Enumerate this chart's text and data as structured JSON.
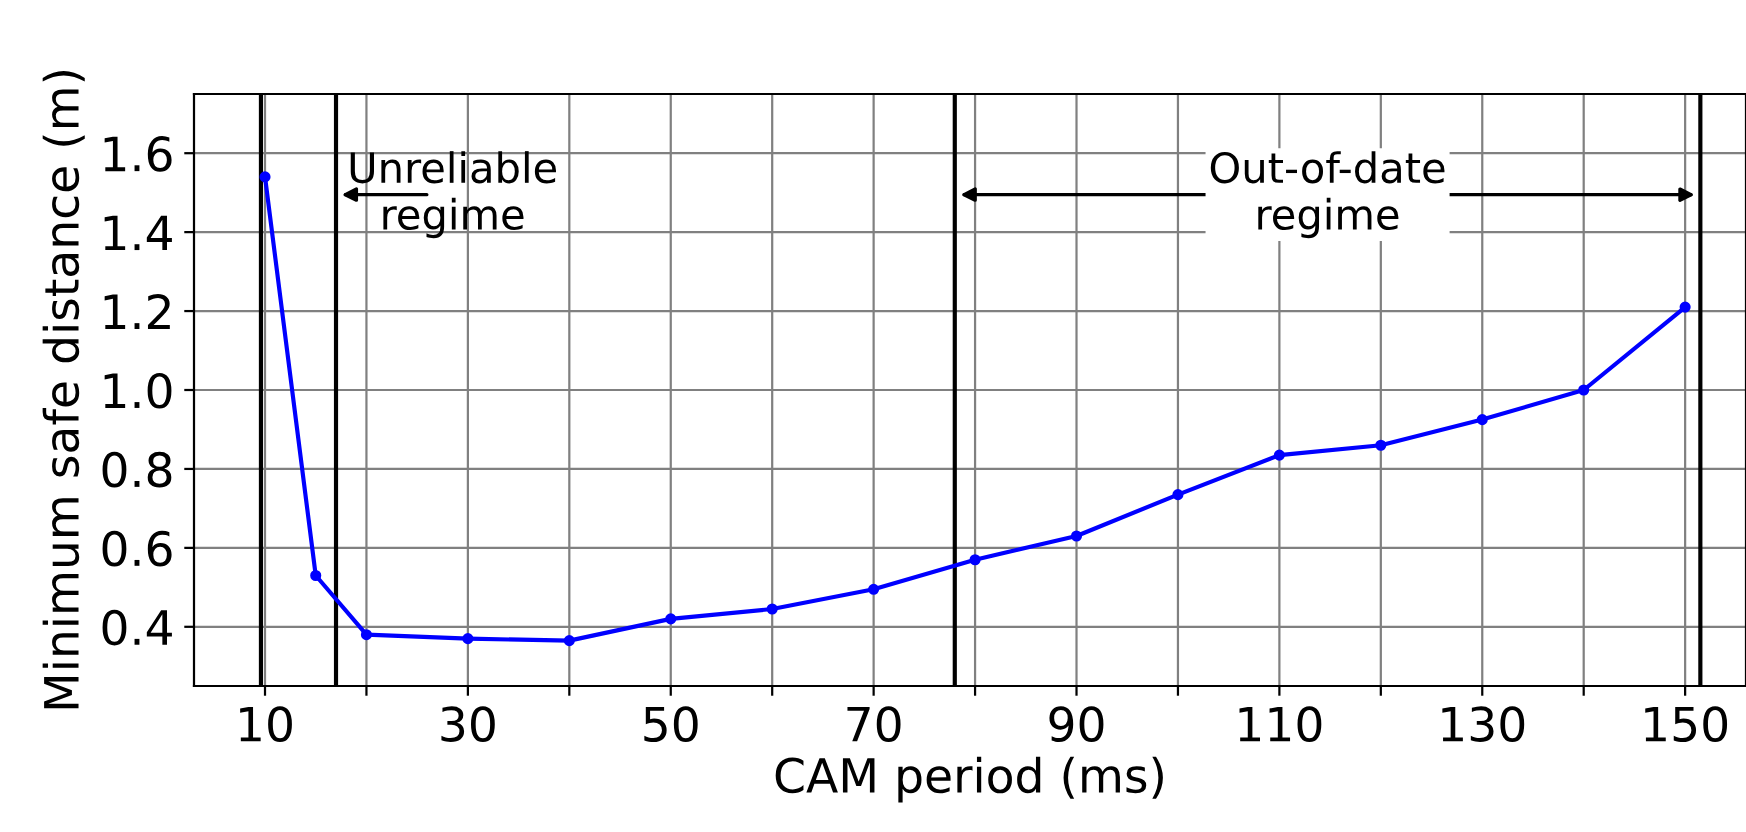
{
  "chart_data": {
    "type": "line",
    "xlabel": "CAM period (ms)",
    "ylabel": "Minimum safe distance (m)",
    "x": [
      10,
      15,
      20,
      30,
      40,
      50,
      60,
      70,
      80,
      90,
      100,
      110,
      120,
      130,
      140,
      150
    ],
    "series": [
      {
        "color": "#0000ff",
        "values": [
          1.54,
          0.53,
          0.38,
          0.37,
          0.365,
          0.42,
          0.445,
          0.495,
          0.57,
          0.63,
          0.735,
          0.835,
          0.86,
          0.925,
          1.0,
          1.21
        ]
      }
    ],
    "xlim": [
      3,
      156
    ],
    "ylim": [
      0.25,
      1.75
    ],
    "xticks": [
      10,
      {
        "value": 20,
        "label": null
      },
      30,
      {
        "value": 40,
        "label": null
      },
      50,
      {
        "value": 60,
        "label": null
      },
      70,
      {
        "value": 80,
        "label": null
      },
      90,
      {
        "value": 100,
        "label": null
      },
      110,
      {
        "value": 120,
        "label": null
      },
      130,
      {
        "value": 140,
        "label": null
      },
      150
    ],
    "yticks": [
      0.4,
      0.6,
      0.8,
      {
        "value": 1.0,
        "label": "1.0"
      },
      1.2,
      1.4,
      1.6
    ],
    "ref_lines": [
      {
        "axis": "x",
        "value": 9.6,
        "color": "#000000"
      },
      {
        "axis": "x",
        "value": 17,
        "color": "#000000"
      },
      {
        "axis": "x",
        "value": 78,
        "color": "#000000"
      },
      {
        "axis": "x",
        "value": 151.5,
        "color": "#000000"
      }
    ],
    "annotations": [
      "Unreliable\nregime",
      "Out-of-date\nregime"
    ],
    "grid": true,
    "marker": "circle",
    "line_style": "solid",
    "legend": false
  }
}
